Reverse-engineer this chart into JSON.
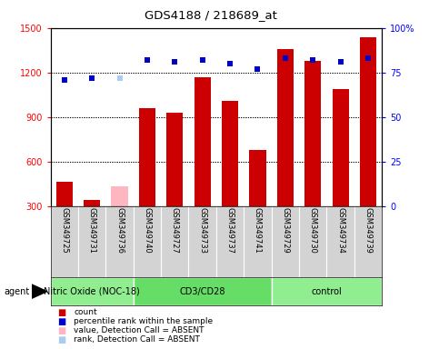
{
  "title": "GDS4188 / 218689_at",
  "samples": [
    "GSM349725",
    "GSM349731",
    "GSM349736",
    "GSM349740",
    "GSM349727",
    "GSM349733",
    "GSM349737",
    "GSM349741",
    "GSM349729",
    "GSM349730",
    "GSM349734",
    "GSM349739"
  ],
  "counts": [
    460,
    340,
    430,
    960,
    930,
    1170,
    1010,
    680,
    1360,
    1280,
    1090,
    1440
  ],
  "absent_flags": [
    false,
    false,
    true,
    false,
    false,
    false,
    false,
    false,
    false,
    false,
    false,
    false
  ],
  "percentile_ranks": [
    71,
    72,
    72,
    82,
    81,
    82,
    80,
    77,
    83,
    82,
    81,
    83
  ],
  "absent_rank_flags": [
    false,
    false,
    true,
    false,
    false,
    false,
    false,
    false,
    false,
    false,
    false,
    false
  ],
  "groups": [
    {
      "label": "Nitric Oxide (NOC-18)",
      "start": 0,
      "end": 3
    },
    {
      "label": "CD3/CD28",
      "start": 3,
      "end": 8
    },
    {
      "label": "control",
      "start": 8,
      "end": 12
    }
  ],
  "group_colors": [
    "#90ee90",
    "#66dd66",
    "#90ee90"
  ],
  "ylim_left": [
    300,
    1500
  ],
  "ylim_right": [
    0,
    100
  ],
  "yticks_left": [
    300,
    600,
    900,
    1200,
    1500
  ],
  "yticks_right": [
    0,
    25,
    50,
    75,
    100
  ],
  "bar_color_normal": "#cc0000",
  "bar_color_absent": "#FFB6C1",
  "dot_color_normal": "#0000cc",
  "dot_color_absent": "#aaccee",
  "grid_color": "black",
  "agent_label": "agent"
}
